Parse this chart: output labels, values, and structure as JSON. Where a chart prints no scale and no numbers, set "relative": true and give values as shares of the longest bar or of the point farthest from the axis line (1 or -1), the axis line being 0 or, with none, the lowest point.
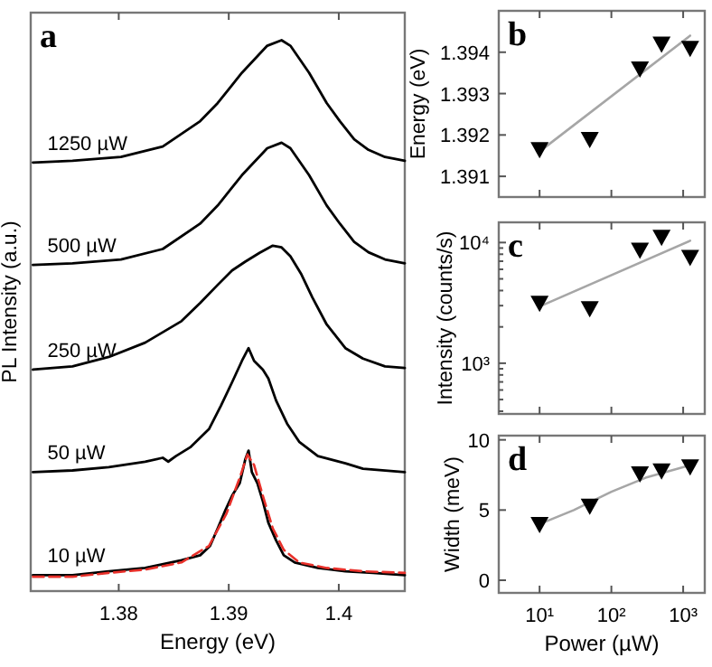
{
  "chart_data": [
    {
      "type": "line",
      "title": "a",
      "xlabel": "Energy (eV)",
      "ylabel": "PL Intensity (a.u.)",
      "relative": true,
      "xlim": [
        1.372,
        1.406
      ],
      "xticks": [
        1.38,
        1.39,
        1.4
      ],
      "series": [
        {
          "name": "1250 µW",
          "color": "#000000",
          "x": [
            1.3722,
            1.3758,
            1.3802,
            1.384,
            1.3874,
            1.389,
            1.3912,
            1.3935,
            1.3948,
            1.3956,
            1.3973,
            1.3989,
            1.4001,
            1.4014,
            1.4027,
            1.4042,
            1.406
          ],
          "values": [
            0.778,
            0.781,
            0.788,
            0.807,
            0.853,
            0.886,
            0.941,
            0.99,
            1.0,
            0.99,
            0.941,
            0.886,
            0.853,
            0.82,
            0.801,
            0.788,
            0.781
          ]
        },
        {
          "name": "500 µW",
          "color": "#000000",
          "x": [
            1.3722,
            1.3758,
            1.3802,
            1.384,
            1.3874,
            1.389,
            1.3912,
            1.3935,
            1.3948,
            1.3956,
            1.3973,
            1.3989,
            1.4001,
            1.4014,
            1.4027,
            1.4042,
            1.406
          ],
          "values": [
            0.592,
            0.595,
            0.602,
            0.621,
            0.667,
            0.7,
            0.755,
            0.804,
            0.814,
            0.804,
            0.755,
            0.7,
            0.667,
            0.634,
            0.615,
            0.602,
            0.595
          ]
        },
        {
          "name": "250 µW",
          "color": "#000000",
          "x": [
            1.3722,
            1.3758,
            1.3791,
            1.3824,
            1.3857,
            1.3874,
            1.389,
            1.3903,
            1.3915,
            1.3928,
            1.394,
            1.3948,
            1.3956,
            1.3966,
            1.3976,
            1.3989,
            1.4006,
            1.4022,
            1.4042,
            1.406
          ],
          "values": [
            0.402,
            0.408,
            0.425,
            0.451,
            0.49,
            0.523,
            0.556,
            0.582,
            0.598,
            0.614,
            0.627,
            0.624,
            0.608,
            0.575,
            0.533,
            0.484,
            0.441,
            0.422,
            0.408,
            0.405
          ]
        },
        {
          "name": "50 µW",
          "color": "#000000",
          "x": [
            1.3722,
            1.3758,
            1.3791,
            1.3824,
            1.384,
            1.3845,
            1.3852,
            1.3865,
            1.3882,
            1.3893,
            1.3903,
            1.3912,
            1.3918,
            1.3923,
            1.3931,
            1.3936,
            1.3943,
            1.3953,
            1.3964,
            1.3981,
            1.4006,
            1.4022,
            1.406
          ],
          "values": [
            0.216,
            0.219,
            0.225,
            0.235,
            0.242,
            0.235,
            0.245,
            0.261,
            0.294,
            0.337,
            0.379,
            0.418,
            0.441,
            0.418,
            0.402,
            0.386,
            0.346,
            0.304,
            0.271,
            0.245,
            0.232,
            0.222,
            0.216
          ]
        },
        {
          "name": "10 µW",
          "color": "#000000",
          "x": [
            1.3722,
            1.3758,
            1.3791,
            1.3824,
            1.3857,
            1.3874,
            1.3883,
            1.389,
            1.3897,
            1.3903,
            1.391,
            1.3915,
            1.3918,
            1.3921,
            1.3926,
            1.3931,
            1.3936,
            1.3943,
            1.395,
            1.396,
            1.3981,
            1.4006,
            1.4031,
            1.406
          ],
          "values": [
            0.029,
            0.029,
            0.036,
            0.042,
            0.056,
            0.065,
            0.082,
            0.114,
            0.147,
            0.173,
            0.196,
            0.239,
            0.255,
            0.216,
            0.196,
            0.163,
            0.124,
            0.092,
            0.065,
            0.052,
            0.042,
            0.036,
            0.033,
            0.029
          ]
        },
        {
          "color": "#e8302a",
          "line_style": "dashed",
          "x": [
            1.3722,
            1.3758,
            1.3791,
            1.3824,
            1.3857,
            1.3882,
            1.3898,
            1.391,
            1.3917,
            1.3923,
            1.3931,
            1.394,
            1.395,
            1.3964,
            1.3989,
            1.4022,
            1.406
          ],
          "values": [
            0.026,
            0.026,
            0.033,
            0.039,
            0.052,
            0.082,
            0.141,
            0.206,
            0.248,
            0.229,
            0.173,
            0.114,
            0.075,
            0.052,
            0.042,
            0.036,
            0.033
          ]
        }
      ]
    },
    {
      "type": "scatter",
      "title": "b",
      "ylabel": "Energy (eV)",
      "log": "x",
      "tick_labels": "y",
      "xlim": [
        2.7,
        2000
      ],
      "xticks": [
        {
          "value": 10,
          "label": null
        },
        {
          "value": 100,
          "label": null
        },
        {
          "value": 1000,
          "label": null
        }
      ],
      "ylim": [
        1.3905,
        1.395
      ],
      "yticks": [
        1.391,
        1.392,
        1.393,
        1.394
      ],
      "series": [
        {
          "color": "#000000",
          "marker": "triangle",
          "x": [
            10,
            50,
            250,
            500,
            1250
          ],
          "values": [
            1.39165,
            1.3919,
            1.3936,
            1.3942,
            1.3941
          ]
        },
        {
          "type": "line",
          "marker": "none",
          "color": "#a6a6a6",
          "x": [
            10,
            1250
          ],
          "values": [
            1.3916,
            1.3944
          ]
        }
      ]
    },
    {
      "type": "scatter",
      "title": "c",
      "ylabel": "Intensity (counts/s)",
      "log": "xy",
      "tick_labels": "y",
      "xlim": [
        2.7,
        2000
      ],
      "xticks": [
        {
          "value": 10,
          "label": null
        },
        {
          "value": 100,
          "label": null
        },
        {
          "value": 1000,
          "label": null
        }
      ],
      "ylim": [
        380,
        14700
      ],
      "yticks": [
        {
          "value": 400,
          "label": null
        },
        {
          "value": 500,
          "label": null
        },
        {
          "value": 600,
          "label": null
        },
        {
          "value": 700,
          "label": null
        },
        {
          "value": 800,
          "label": null
        },
        {
          "value": 900,
          "label": null
        },
        {
          "value": 1000,
          "label": "10³"
        },
        {
          "value": 2000,
          "label": null
        },
        {
          "value": 3000,
          "label": null
        },
        {
          "value": 4000,
          "label": null
        },
        {
          "value": 5000,
          "label": null
        },
        {
          "value": 6000,
          "label": null
        },
        {
          "value": 7000,
          "label": null
        },
        {
          "value": 8000,
          "label": null
        },
        {
          "value": 9000,
          "label": null
        },
        {
          "value": 10000,
          "label": "10⁴"
        }
      ],
      "series": [
        {
          "color": "#000000",
          "marker": "triangle",
          "x": [
            10,
            50,
            250,
            500,
            1250
          ],
          "values": [
            3160,
            2850,
            8700,
            11100,
            7570
          ]
        },
        {
          "type": "line",
          "marker": "none",
          "color": "#a6a6a6",
          "x": [
            10,
            1250
          ],
          "values": [
            2950,
            10350
          ]
        }
      ]
    },
    {
      "type": "scatter",
      "title": "d",
      "xlabel": "Power (µW)",
      "ylabel": "Width (meV)",
      "log": "x",
      "xlim": [
        2.7,
        2000
      ],
      "xticks": [
        {
          "value": 10,
          "label": "10¹"
        },
        {
          "value": 100,
          "label": "10²"
        },
        {
          "value": 1000,
          "label": "10³"
        }
      ],
      "ylim": [
        -0.9,
        10.3
      ],
      "yticks": [
        0,
        5,
        10
      ],
      "series": [
        {
          "color": "#000000",
          "marker": "triangle",
          "x": [
            10,
            50,
            250,
            500,
            1250
          ],
          "values": [
            4.0,
            5.3,
            7.6,
            7.8,
            8.1
          ]
        },
        {
          "type": "line",
          "marker": "none",
          "color": "#a6a6a6",
          "x": [
            10,
            30,
            100,
            300,
            1250
          ],
          "values": [
            4.0,
            5.0,
            6.3,
            7.3,
            8.2
          ]
        }
      ]
    }
  ]
}
